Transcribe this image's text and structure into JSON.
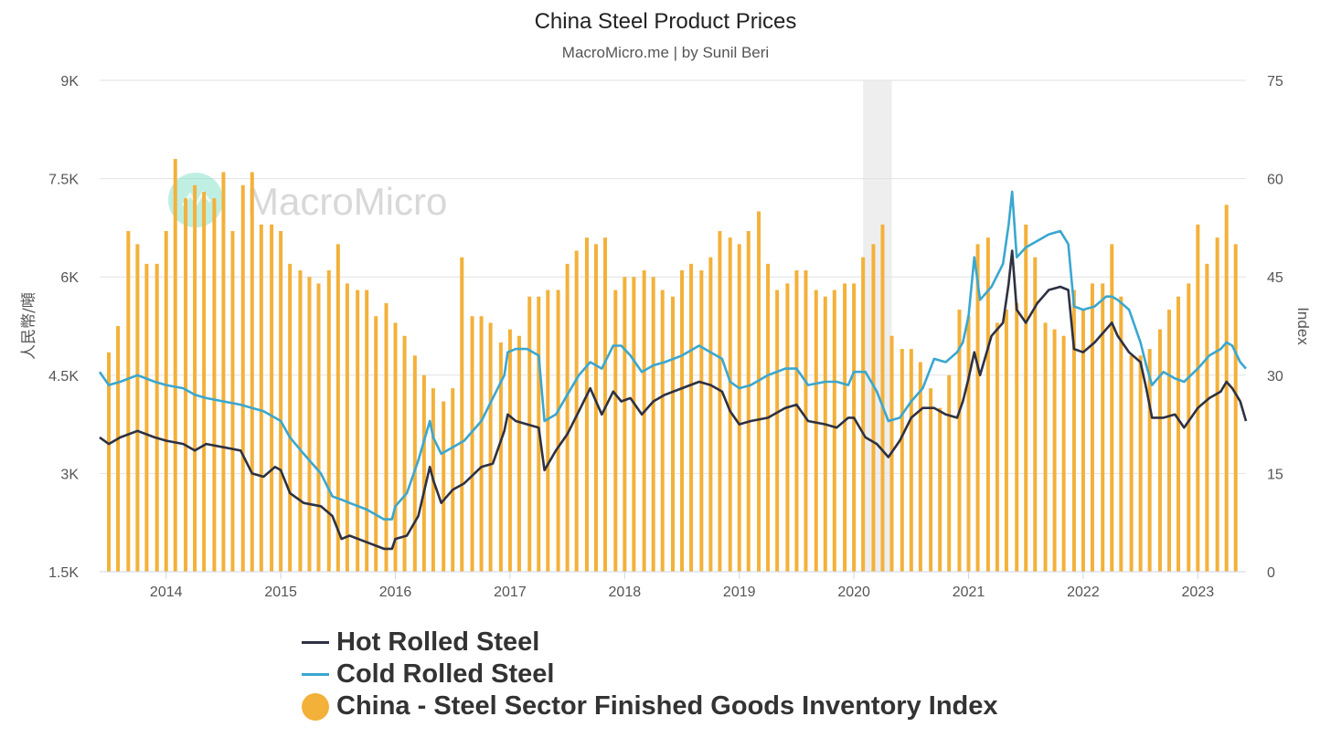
{
  "title": "China Steel Product Prices",
  "subtitle": "MacroMicro.me | by Sunil Beri",
  "watermark": "MacroMicro",
  "colors": {
    "hot": "#2d3142",
    "cold": "#3aa7d0",
    "bars": "#f3b13a",
    "grid": "#e2e2e2",
    "shade": "#eeeeee",
    "axis_text": "#555555",
    "logo": "#7fe0c8"
  },
  "legend": [
    {
      "label": "Hot Rolled Steel",
      "color": "#2d3142",
      "marker": "line"
    },
    {
      "label": "Cold Rolled Steel",
      "color": "#3aa7d0",
      "marker": "line"
    },
    {
      "label": "China - Steel Sector Finished Goods Inventory Index",
      "color": "#f3b13a",
      "marker": "circle"
    }
  ],
  "chart_data": {
    "type": "line",
    "x_range": [
      2013.42,
      2023.42
    ],
    "x_ticks": [
      "2014",
      "2015",
      "2016",
      "2017",
      "2018",
      "2019",
      "2020",
      "2021",
      "2022",
      "2023"
    ],
    "y_left": {
      "label": "人民幣/噸",
      "range": [
        1500,
        9000
      ],
      "ticks": [
        1500,
        3000,
        4500,
        6000,
        7500,
        9000
      ],
      "tick_labels": [
        "1.5K",
        "3K",
        "4.5K",
        "6K",
        "7.5K",
        "9K"
      ]
    },
    "y_right": {
      "label": "Index",
      "range": [
        0,
        75
      ],
      "ticks": [
        0,
        15,
        30,
        45,
        60,
        75
      ],
      "tick_labels": [
        "0",
        "15",
        "30",
        "45",
        "60",
        "75"
      ]
    },
    "shaded_region": [
      2020.08,
      2020.33
    ],
    "grid": true,
    "series": [
      {
        "name": "Hot Rolled Steel",
        "axis": "left",
        "x": [
          2013.42,
          2013.5,
          2013.6,
          2013.75,
          2013.9,
          2014.0,
          2014.15,
          2014.25,
          2014.35,
          2014.5,
          2014.65,
          2014.75,
          2014.85,
          2014.95,
          2015.0,
          2015.08,
          2015.2,
          2015.35,
          2015.45,
          2015.53,
          2015.6,
          2015.75,
          2015.9,
          2015.97,
          2016.0,
          2016.1,
          2016.2,
          2016.3,
          2016.33,
          2016.4,
          2016.5,
          2016.6,
          2016.75,
          2016.85,
          2016.95,
          2016.98,
          2017.05,
          2017.15,
          2017.25,
          2017.3,
          2017.4,
          2017.5,
          2017.6,
          2017.7,
          2017.8,
          2017.9,
          2017.97,
          2018.05,
          2018.15,
          2018.25,
          2018.35,
          2018.5,
          2018.65,
          2018.75,
          2018.85,
          2018.92,
          2019.0,
          2019.1,
          2019.25,
          2019.4,
          2019.5,
          2019.6,
          2019.75,
          2019.85,
          2019.95,
          2020.0,
          2020.1,
          2020.2,
          2020.3,
          2020.4,
          2020.5,
          2020.6,
          2020.7,
          2020.8,
          2020.9,
          2020.95,
          2021.0,
          2021.05,
          2021.1,
          2021.2,
          2021.3,
          2021.35,
          2021.38,
          2021.42,
          2021.5,
          2021.6,
          2021.7,
          2021.8,
          2021.87,
          2021.92,
          2022.0,
          2022.1,
          2022.2,
          2022.25,
          2022.3,
          2022.4,
          2022.5,
          2022.55,
          2022.6,
          2022.7,
          2022.8,
          2022.88,
          2023.0,
          2023.1,
          2023.2,
          2023.25,
          2023.3,
          2023.37,
          2023.42
        ],
        "values": [
          3550,
          3450,
          3550,
          3650,
          3550,
          3500,
          3450,
          3350,
          3450,
          3400,
          3350,
          3000,
          2950,
          3100,
          3050,
          2700,
          2550,
          2500,
          2350,
          2000,
          2050,
          1950,
          1850,
          1850,
          2000,
          2050,
          2350,
          3100,
          2900,
          2550,
          2750,
          2850,
          3100,
          3150,
          3650,
          3900,
          3800,
          3750,
          3700,
          3050,
          3350,
          3600,
          3950,
          4300,
          3900,
          4250,
          4100,
          4150,
          3900,
          4100,
          4200,
          4300,
          4400,
          4350,
          4250,
          3950,
          3750,
          3800,
          3850,
          4000,
          4050,
          3800,
          3750,
          3700,
          3850,
          3850,
          3550,
          3450,
          3250,
          3500,
          3850,
          4000,
          4000,
          3900,
          3850,
          4100,
          4450,
          4850,
          4500,
          5100,
          5300,
          5900,
          6400,
          5500,
          5300,
          5600,
          5800,
          5850,
          5800,
          4900,
          4850,
          5000,
          5200,
          5300,
          5100,
          4850,
          4700,
          4300,
          3850,
          3850,
          3900,
          3700,
          4000,
          4150,
          4250,
          4400,
          4300,
          4100,
          3800
        ]
      },
      {
        "name": "Cold Rolled Steel",
        "axis": "left",
        "x": [
          2013.42,
          2013.5,
          2013.6,
          2013.75,
          2013.9,
          2014.0,
          2014.15,
          2014.25,
          2014.35,
          2014.5,
          2014.65,
          2014.75,
          2014.85,
          2014.95,
          2015.0,
          2015.08,
          2015.2,
          2015.35,
          2015.45,
          2015.53,
          2015.6,
          2015.75,
          2015.9,
          2015.97,
          2016.0,
          2016.1,
          2016.2,
          2016.3,
          2016.33,
          2016.4,
          2016.5,
          2016.6,
          2016.75,
          2016.85,
          2016.95,
          2016.98,
          2017.05,
          2017.15,
          2017.25,
          2017.3,
          2017.4,
          2017.5,
          2017.6,
          2017.7,
          2017.8,
          2017.9,
          2017.97,
          2018.05,
          2018.15,
          2018.25,
          2018.35,
          2018.5,
          2018.65,
          2018.75,
          2018.85,
          2018.92,
          2019.0,
          2019.1,
          2019.25,
          2019.4,
          2019.5,
          2019.6,
          2019.75,
          2019.85,
          2019.95,
          2020.0,
          2020.1,
          2020.2,
          2020.3,
          2020.4,
          2020.5,
          2020.6,
          2020.7,
          2020.8,
          2020.9,
          2020.95,
          2021.0,
          2021.05,
          2021.1,
          2021.2,
          2021.3,
          2021.35,
          2021.38,
          2021.42,
          2021.5,
          2021.6,
          2021.7,
          2021.8,
          2021.87,
          2021.92,
          2022.0,
          2022.1,
          2022.2,
          2022.25,
          2022.3,
          2022.4,
          2022.5,
          2022.55,
          2022.6,
          2022.7,
          2022.8,
          2022.88,
          2023.0,
          2023.1,
          2023.2,
          2023.25,
          2023.3,
          2023.37,
          2023.42
        ],
        "values": [
          4550,
          4350,
          4400,
          4500,
          4400,
          4350,
          4300,
          4200,
          4150,
          4100,
          4050,
          4000,
          3950,
          3850,
          3800,
          3550,
          3300,
          3000,
          2650,
          2600,
          2550,
          2450,
          2300,
          2300,
          2500,
          2700,
          3200,
          3800,
          3550,
          3300,
          3400,
          3500,
          3800,
          4150,
          4500,
          4850,
          4900,
          4900,
          4800,
          3800,
          3900,
          4200,
          4500,
          4700,
          4600,
          4950,
          4950,
          4800,
          4550,
          4650,
          4700,
          4800,
          4950,
          4850,
          4750,
          4400,
          4300,
          4350,
          4500,
          4600,
          4600,
          4350,
          4400,
          4400,
          4350,
          4550,
          4550,
          4250,
          3800,
          3850,
          4100,
          4300,
          4750,
          4700,
          4850,
          5000,
          5400,
          6300,
          5650,
          5850,
          6200,
          6800,
          7300,
          6300,
          6450,
          6550,
          6650,
          6700,
          6500,
          5550,
          5500,
          5550,
          5700,
          5700,
          5650,
          5500,
          5000,
          4650,
          4350,
          4550,
          4450,
          4400,
          4600,
          4800,
          4900,
          5000,
          4950,
          4700,
          4600
        ]
      },
      {
        "name": "China - Steel Sector Finished Goods Inventory Index",
        "axis": "right",
        "type": "bar",
        "x": [
          2013.5,
          2013.58,
          2013.67,
          2013.75,
          2013.83,
          2013.92,
          2014.0,
          2014.08,
          2014.17,
          2014.25,
          2014.33,
          2014.42,
          2014.5,
          2014.58,
          2014.67,
          2014.75,
          2014.83,
          2014.92,
          2015.0,
          2015.08,
          2015.17,
          2015.25,
          2015.33,
          2015.42,
          2015.5,
          2015.58,
          2015.67,
          2015.75,
          2015.83,
          2015.92,
          2016.0,
          2016.08,
          2016.17,
          2016.25,
          2016.33,
          2016.42,
          2016.5,
          2016.58,
          2016.67,
          2016.75,
          2016.83,
          2016.92,
          2017.0,
          2017.08,
          2017.17,
          2017.25,
          2017.33,
          2017.42,
          2017.5,
          2017.58,
          2017.67,
          2017.75,
          2017.83,
          2017.92,
          2018.0,
          2018.08,
          2018.17,
          2018.25,
          2018.33,
          2018.42,
          2018.5,
          2018.58,
          2018.67,
          2018.75,
          2018.83,
          2018.92,
          2019.0,
          2019.08,
          2019.17,
          2019.25,
          2019.33,
          2019.42,
          2019.5,
          2019.58,
          2019.67,
          2019.75,
          2019.83,
          2019.92,
          2020.0,
          2020.08,
          2020.17,
          2020.25,
          2020.33,
          2020.42,
          2020.5,
          2020.58,
          2020.67,
          2020.75,
          2020.83,
          2020.92,
          2021.0,
          2021.08,
          2021.17,
          2021.25,
          2021.33,
          2021.42,
          2021.5,
          2021.58,
          2021.67,
          2021.75,
          2021.83,
          2021.92,
          2022.0,
          2022.08,
          2022.17,
          2022.25,
          2022.33,
          2022.42,
          2022.5,
          2022.58,
          2022.67,
          2022.75,
          2022.83,
          2022.92,
          2023.0,
          2023.08,
          2023.17,
          2023.25,
          2023.33
        ],
        "values": [
          33.5,
          37.5,
          52,
          50,
          47,
          47,
          52,
          63,
          57,
          59,
          58,
          57,
          61,
          52,
          59,
          61,
          53,
          53,
          52,
          47,
          46,
          45,
          44,
          46,
          50,
          44,
          43,
          43,
          39,
          41,
          38,
          36,
          33,
          30,
          28,
          26,
          28,
          48,
          39,
          39,
          38,
          35,
          37,
          36,
          42,
          42,
          43,
          43,
          47,
          49,
          51,
          50,
          51,
          43,
          45,
          45,
          46,
          45,
          43,
          42,
          46,
          47,
          46,
          48,
          52,
          51,
          50,
          52,
          55,
          47,
          43,
          44,
          46,
          46,
          43,
          42,
          43,
          44,
          44,
          48,
          50,
          53,
          36,
          34,
          34,
          32,
          28,
          25,
          30,
          40,
          39,
          50,
          51,
          38,
          40,
          41,
          53,
          48,
          38,
          37,
          36,
          43,
          40,
          44,
          44,
          50,
          42,
          33,
          33,
          34,
          37,
          40,
          42,
          44,
          53,
          47,
          51,
          56,
          50
        ]
      }
    ]
  }
}
